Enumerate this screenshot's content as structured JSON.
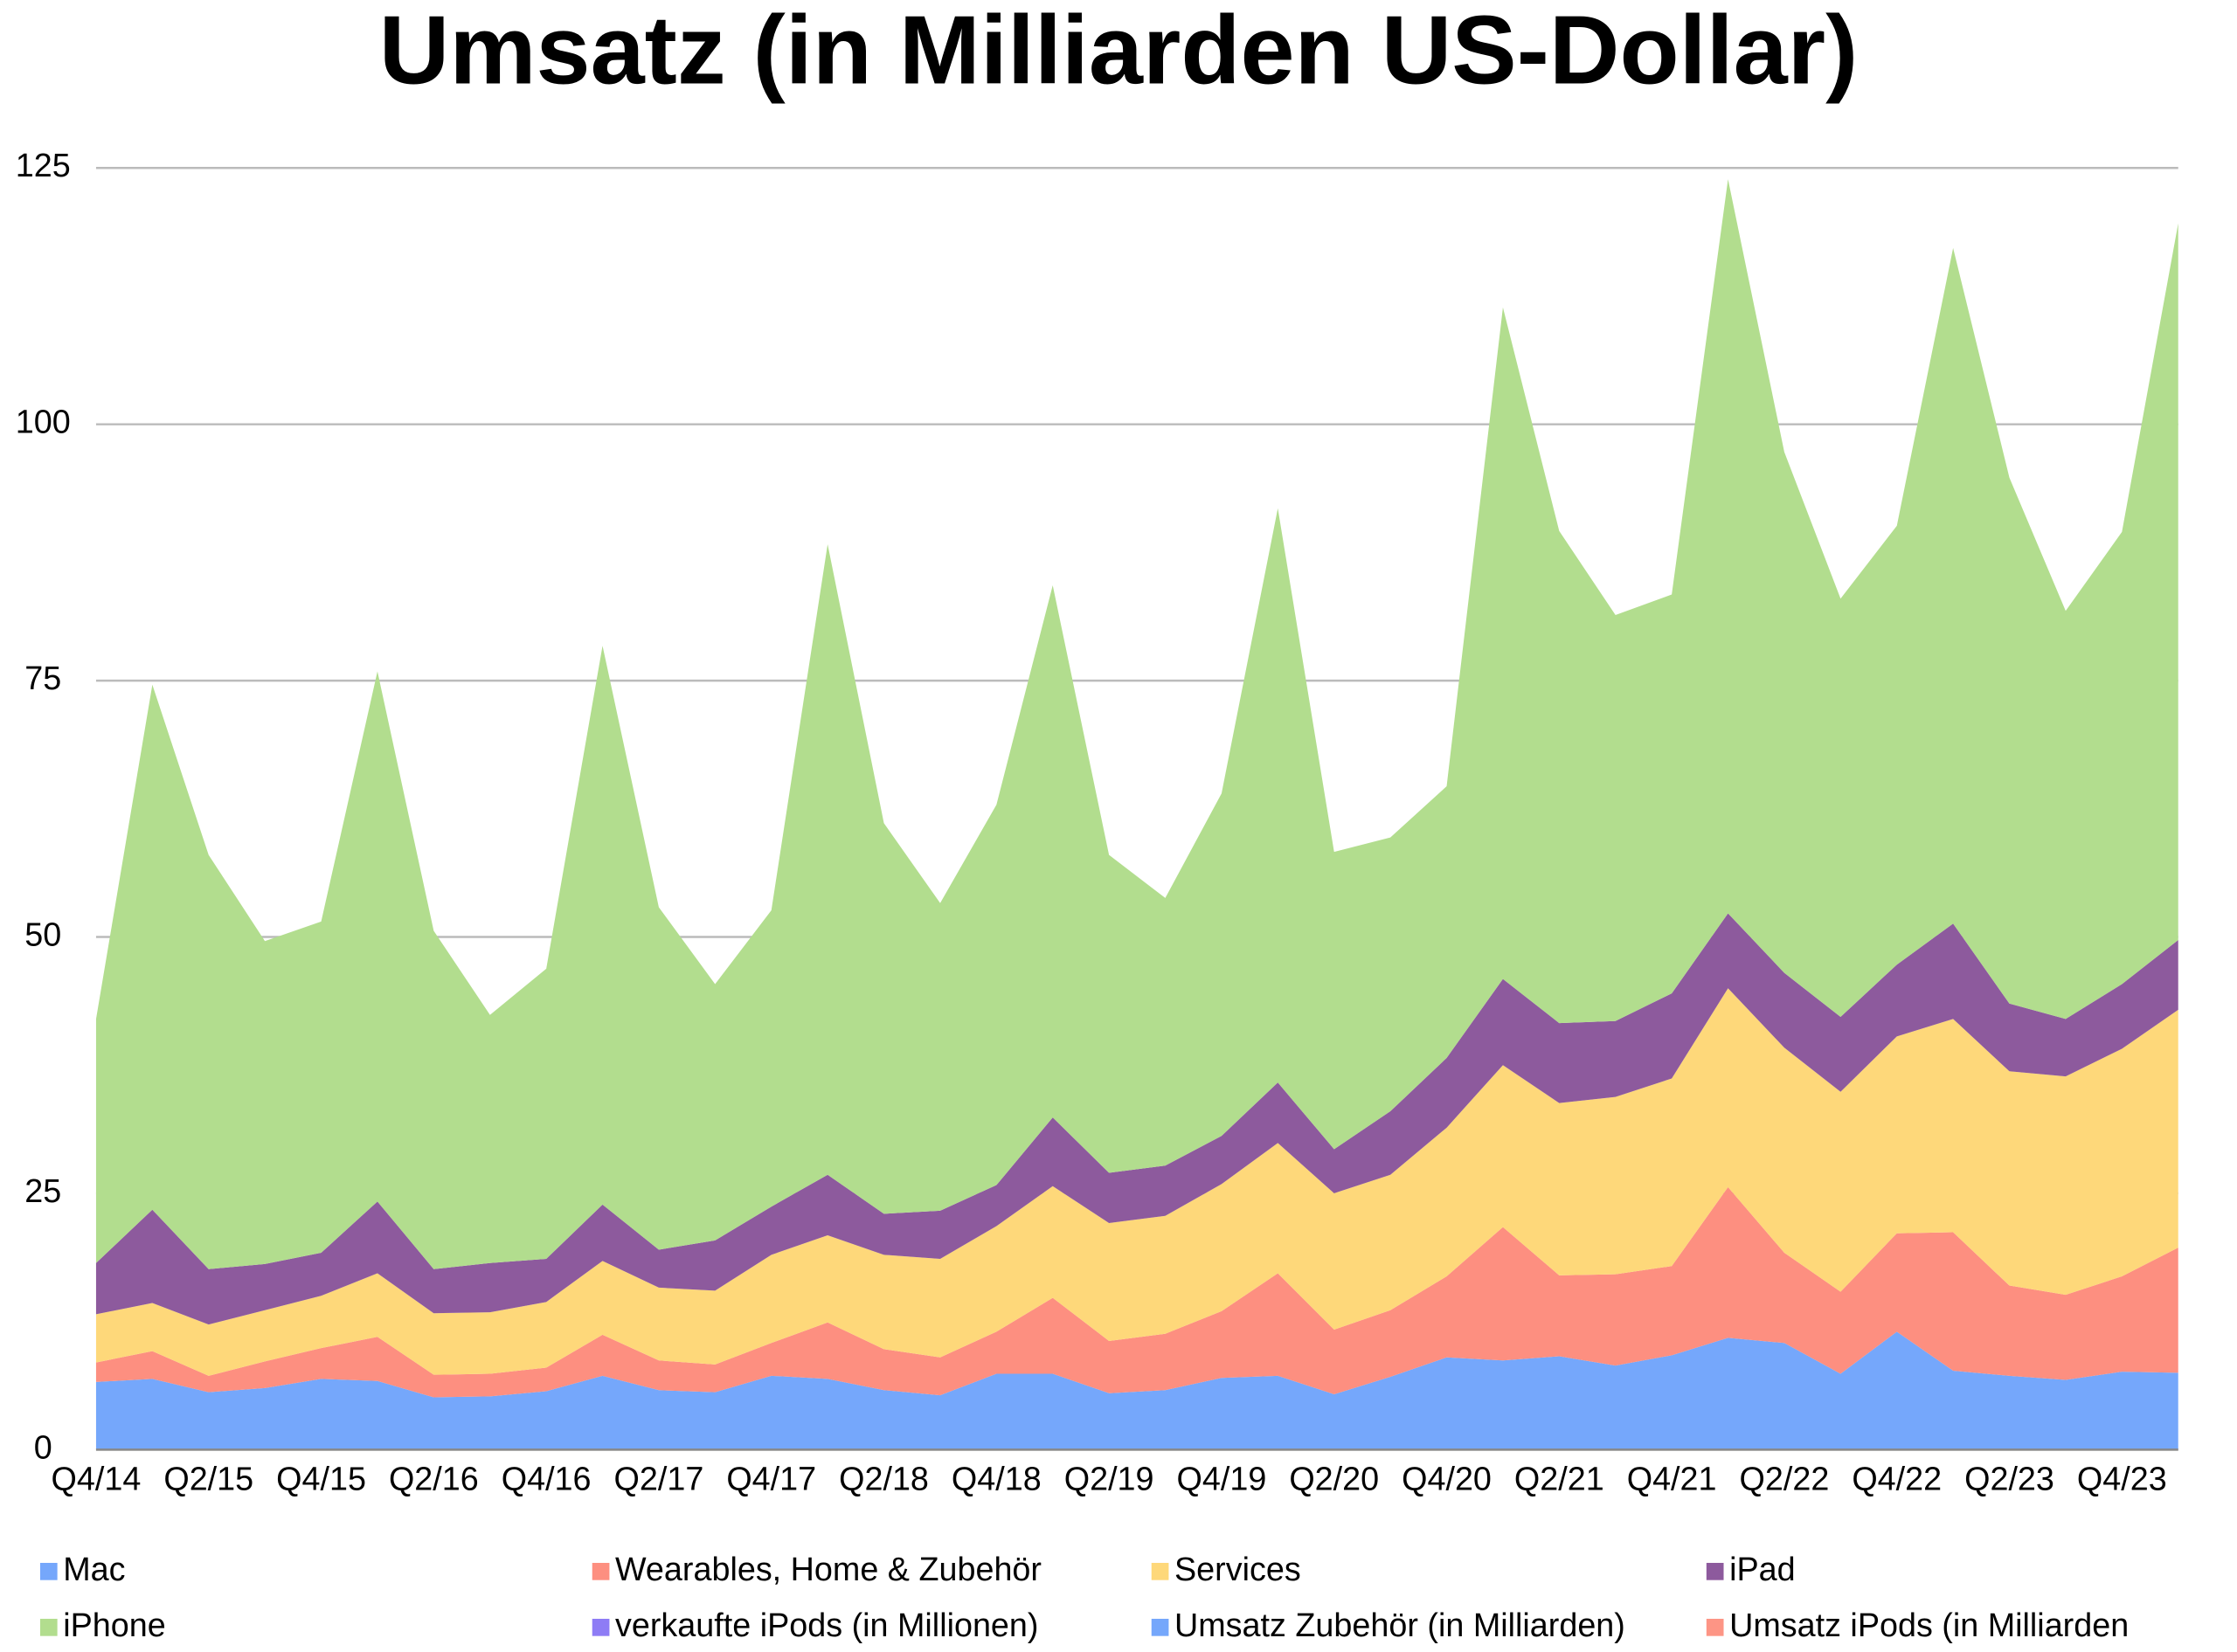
{
  "chart_data": {
    "type": "stacked_area",
    "title": "Umsatz (in Milliarden US-Dollar)",
    "categories": [
      "Q4/14",
      null,
      "Q2/15",
      null,
      "Q4/15",
      null,
      "Q2/16",
      null,
      "Q4/16",
      null,
      "Q2/17",
      null,
      "Q4/17",
      null,
      "Q2/18",
      null,
      "Q4/18",
      null,
      "Q2/19",
      null,
      "Q4/19",
      null,
      "Q2/20",
      null,
      "Q4/20",
      null,
      "Q2/21",
      null,
      "Q4/21",
      null,
      "Q2/22",
      null,
      "Q4/22",
      null,
      "Q2/23",
      null,
      "Q4/23",
      null
    ],
    "series": [
      {
        "name": "Mac",
        "color": "#75a7fb",
        "values": [
          6.6,
          6.9,
          5.6,
          6.0,
          6.9,
          6.7,
          5.1,
          5.2,
          5.7,
          7.2,
          5.8,
          5.6,
          7.2,
          6.9,
          5.8,
          5.3,
          7.4,
          7.4,
          5.5,
          5.8,
          7.0,
          7.2,
          5.4,
          7.1,
          9.0,
          8.7,
          9.1,
          8.2,
          9.2,
          10.9,
          10.4,
          7.4,
          11.5,
          7.7,
          7.2,
          6.8,
          7.6,
          7.5
        ]
      },
      {
        "name": "Wearables, Home & Zubehör",
        "color": "#fd8f80",
        "values": [
          1.9,
          2.7,
          1.6,
          2.6,
          3.0,
          4.3,
          2.2,
          2.2,
          2.3,
          4.0,
          2.9,
          2.7,
          3.2,
          5.5,
          4.0,
          3.7,
          4.1,
          7.4,
          5.1,
          5.5,
          6.5,
          10.0,
          6.3,
          6.5,
          7.9,
          13.0,
          7.9,
          8.9,
          8.7,
          14.7,
          8.8,
          8.0,
          9.6,
          13.5,
          8.8,
          8.3,
          9.3,
          12.2
        ]
      },
      {
        "name": "Services",
        "color": "#fed87a",
        "values": [
          4.7,
          4.7,
          5.0,
          5.0,
          5.1,
          6.2,
          6.0,
          6.0,
          6.4,
          7.2,
          7.1,
          7.2,
          8.6,
          8.5,
          9.2,
          9.6,
          10.3,
          10.9,
          11.5,
          11.5,
          12.4,
          12.7,
          13.3,
          13.2,
          14.5,
          15.8,
          16.8,
          17.3,
          18.3,
          19.4,
          20.0,
          19.5,
          19.2,
          20.8,
          20.9,
          21.3,
          22.2,
          23.2
        ]
      },
      {
        "name": "iPad",
        "color": "#8d5a9d",
        "values": [
          5.0,
          9.1,
          5.4,
          4.5,
          4.2,
          7.0,
          4.3,
          4.8,
          4.2,
          5.5,
          3.7,
          4.9,
          4.7,
          5.9,
          4.0,
          4.7,
          4.0,
          6.7,
          4.9,
          4.9,
          4.7,
          5.9,
          4.3,
          6.2,
          6.8,
          8.4,
          7.8,
          7.4,
          8.3,
          7.3,
          7.3,
          7.3,
          7.0,
          9.3,
          6.6,
          5.6,
          6.3,
          6.8
        ]
      },
      {
        "name": "iPhone",
        "color": "#b2dd8e",
        "values": [
          23.8,
          51.2,
          40.4,
          31.5,
          32.3,
          51.7,
          33.0,
          24.2,
          28.3,
          54.5,
          33.4,
          25.0,
          28.9,
          61.5,
          38.1,
          30.0,
          37.1,
          51.9,
          31.0,
          26.1,
          33.4,
          56.0,
          29.0,
          26.7,
          26.5,
          65.5,
          48.0,
          39.6,
          38.9,
          71.6,
          50.8,
          40.8,
          42.8,
          65.9,
          51.3,
          39.8,
          44.1,
          69.9
        ]
      },
      {
        "name": "verkaufte iPods (in Millionen)",
        "color": "#8e7cf5",
        "values": [
          null,
          null,
          null,
          null,
          null,
          null,
          null,
          null,
          null,
          null,
          null,
          null,
          null,
          null,
          null,
          null,
          null,
          null,
          null,
          null,
          null,
          null,
          null,
          null,
          null,
          null,
          null,
          null,
          null,
          null,
          null,
          null,
          null,
          null,
          null,
          null,
          null,
          null
        ]
      },
      {
        "name": "Umsatz Zubehör (in Milliarden)",
        "color": "#75a7fb",
        "values": [
          null,
          null,
          null,
          null,
          null,
          null,
          null,
          null,
          null,
          null,
          null,
          null,
          null,
          null,
          null,
          null,
          null,
          null,
          null,
          null,
          null,
          null,
          null,
          null,
          null,
          null,
          null,
          null,
          null,
          null,
          null,
          null,
          null,
          null,
          null,
          null,
          null,
          null
        ]
      },
      {
        "name": "Umsatz iPods (in Milliarden",
        "color": "#fd9585",
        "values": [
          null,
          null,
          null,
          null,
          null,
          null,
          null,
          null,
          null,
          null,
          null,
          null,
          null,
          null,
          null,
          null,
          null,
          null,
          null,
          null,
          null,
          null,
          null,
          null,
          null,
          null,
          null,
          null,
          null,
          null,
          null,
          null,
          null,
          null,
          null,
          null,
          null,
          null
        ]
      }
    ],
    "ylim": [
      0,
      125
    ],
    "yticks": [
      0,
      25,
      50,
      75,
      100,
      125
    ],
    "grid": true,
    "legend": "bottom"
  }
}
